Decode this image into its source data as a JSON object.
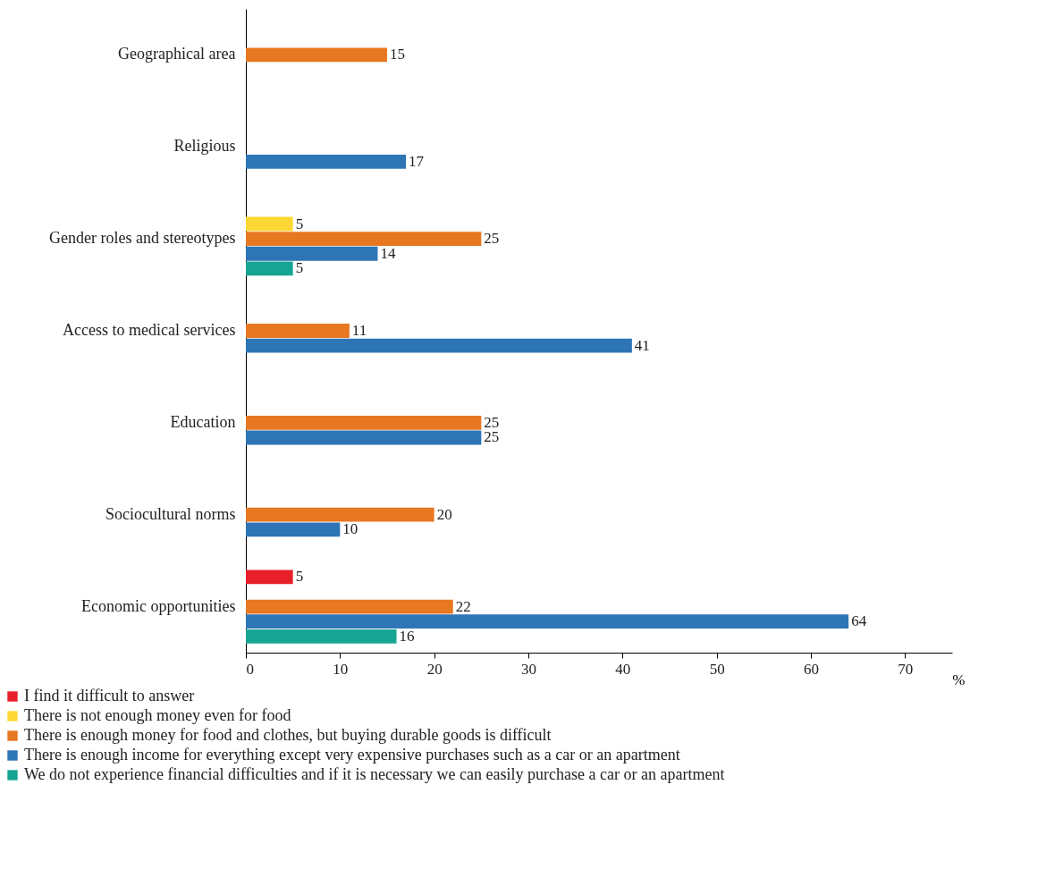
{
  "chart_data": {
    "type": "bar",
    "orientation": "horizontal",
    "xlabel": "%",
    "categories": [
      "Geographical area",
      "Religious",
      "Gender roles and stereotypes",
      "Access to medical services",
      "Education",
      "Sociocultural norms",
      "Economic opportunities"
    ],
    "series": [
      {
        "name": "I find it difficult to answer",
        "color": "#e8202a",
        "values": [
          null,
          null,
          null,
          null,
          null,
          null,
          5
        ]
      },
      {
        "name": "There is not enough money even for food",
        "color": "#fdd835",
        "values": [
          null,
          null,
          5,
          null,
          null,
          null,
          null
        ]
      },
      {
        "name": "There is enough money for food and clothes, but buying durable goods is difficult",
        "color": "#e87722",
        "values": [
          15,
          null,
          25,
          11,
          25,
          20,
          22
        ]
      },
      {
        "name": "There is enough income for everything except very expensive purchases such as a car or an apartment",
        "color": "#2e75b6",
        "values": [
          null,
          17,
          14,
          41,
          25,
          10,
          64
        ]
      },
      {
        "name": "We do not experience financial difficulties and if it is necessary we can easily purchase a car or an apartment",
        "color": "#17a593",
        "values": [
          null,
          null,
          5,
          null,
          null,
          null,
          16
        ]
      }
    ],
    "xlim": [
      0,
      75
    ],
    "xticks": [
      0,
      10,
      20,
      30,
      40,
      50,
      60,
      70
    ],
    "data_labels": true,
    "legend": "bottom",
    "grid": false
  }
}
